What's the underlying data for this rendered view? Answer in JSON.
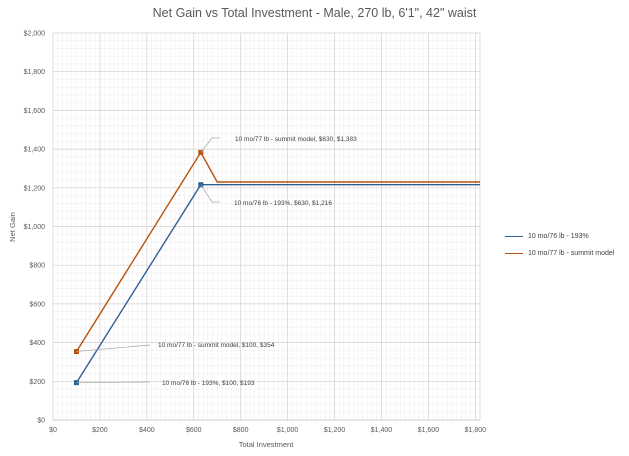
{
  "chart_data": {
    "type": "line",
    "title": "Net Gain vs Total Investment - Male, 270 lb, 6'1\", 42\" waist",
    "xlabel": "Total Investment",
    "ylabel": "Net Gain",
    "xlim": [
      0,
      1820
    ],
    "ylim": [
      0,
      2000
    ],
    "x_ticks": [
      "$0",
      "$200",
      "$400",
      "$600",
      "$800",
      "$1,000",
      "$1,200",
      "$1,400",
      "$1,600",
      "$1,800"
    ],
    "y_ticks": [
      "$0",
      "$200",
      "$400",
      "$600",
      "$800",
      "$1,000",
      "$1,200",
      "$1,400",
      "$1,600",
      "$1,800",
      "$2,000"
    ],
    "grid": true,
    "legend_position": "right",
    "series": [
      {
        "name": "10 mo/76 lb - 193%",
        "color": "#2e6094",
        "points": [
          [
            100,
            193
          ],
          [
            630,
            1216
          ],
          [
            700,
            1216
          ],
          [
            1820,
            1216
          ]
        ],
        "markers": [
          [
            100,
            193
          ],
          [
            630,
            1216
          ]
        ]
      },
      {
        "name": "10 mo/77 lb - summit model",
        "color": "#b8530f",
        "points": [
          [
            100,
            354
          ],
          [
            630,
            1383
          ],
          [
            700,
            1230
          ],
          [
            1820,
            1230
          ]
        ],
        "markers": [
          [
            100,
            354
          ],
          [
            630,
            1383
          ]
        ]
      }
    ],
    "annotations": [
      {
        "text": "10 mo/77 lb - summit model, $630, $1,383",
        "series": 1,
        "point": [
          630,
          1383
        ]
      },
      {
        "text": "10 mo/76 lb - 193%, $630, $1,216",
        "series": 0,
        "point": [
          630,
          1216
        ]
      },
      {
        "text": "10 mo/77 lb - summit model, $100, $354",
        "series": 1,
        "point": [
          100,
          354
        ]
      },
      {
        "text": "10 mo/76 lb - 193%, $100, $193",
        "series": 0,
        "point": [
          100,
          193
        ]
      }
    ]
  }
}
